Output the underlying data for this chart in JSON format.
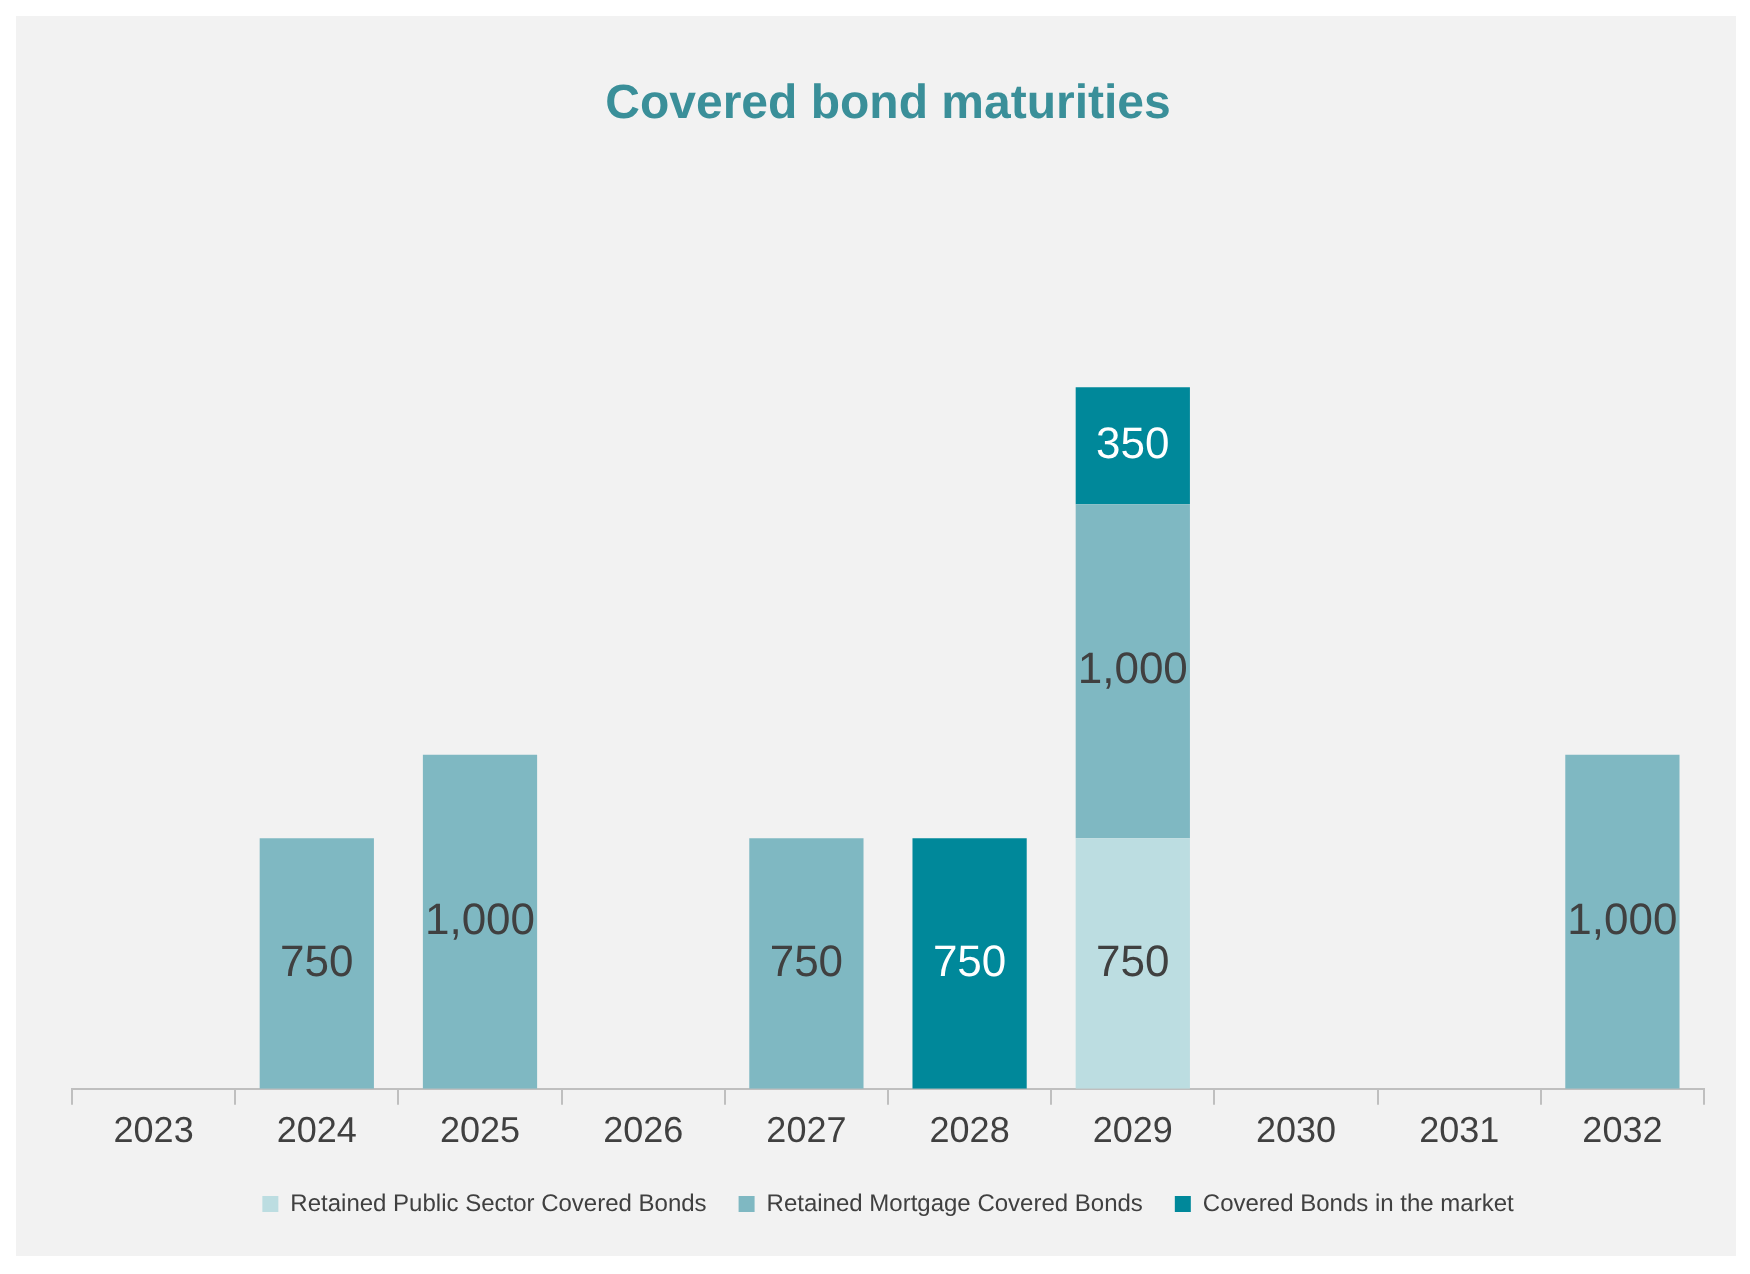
{
  "chart_data": {
    "type": "bar",
    "title": "Covered bond maturities",
    "stacked": true,
    "legend": "bottom",
    "grid": false,
    "categories": [
      "2023",
      "2024",
      "2025",
      "2026",
      "2027",
      "2028",
      "2029",
      "2030",
      "2031",
      "2032"
    ],
    "series": [
      {
        "name": "Retained Public Sector Covered Bonds",
        "color": "#bcdde1",
        "values": [
          null,
          null,
          null,
          null,
          null,
          null,
          750,
          null,
          null,
          null
        ],
        "value_labels": [
          null,
          null,
          null,
          null,
          null,
          null,
          "750",
          null,
          null,
          null
        ]
      },
      {
        "name": "Retained Mortgage Covered Bonds",
        "color": "#7fb8c2",
        "values": [
          null,
          750,
          1000,
          null,
          750,
          null,
          1000,
          null,
          null,
          1000
        ],
        "value_labels": [
          null,
          "750",
          "1,000",
          null,
          "750",
          null,
          "1,000",
          null,
          null,
          "1,000"
        ]
      },
      {
        "name": "Covered Bonds in the market",
        "color": "#00889a",
        "values": [
          null,
          null,
          null,
          null,
          null,
          750,
          350,
          null,
          null,
          null
        ],
        "value_labels": [
          null,
          null,
          null,
          null,
          null,
          "750",
          "350",
          null,
          null,
          null
        ]
      }
    ]
  }
}
